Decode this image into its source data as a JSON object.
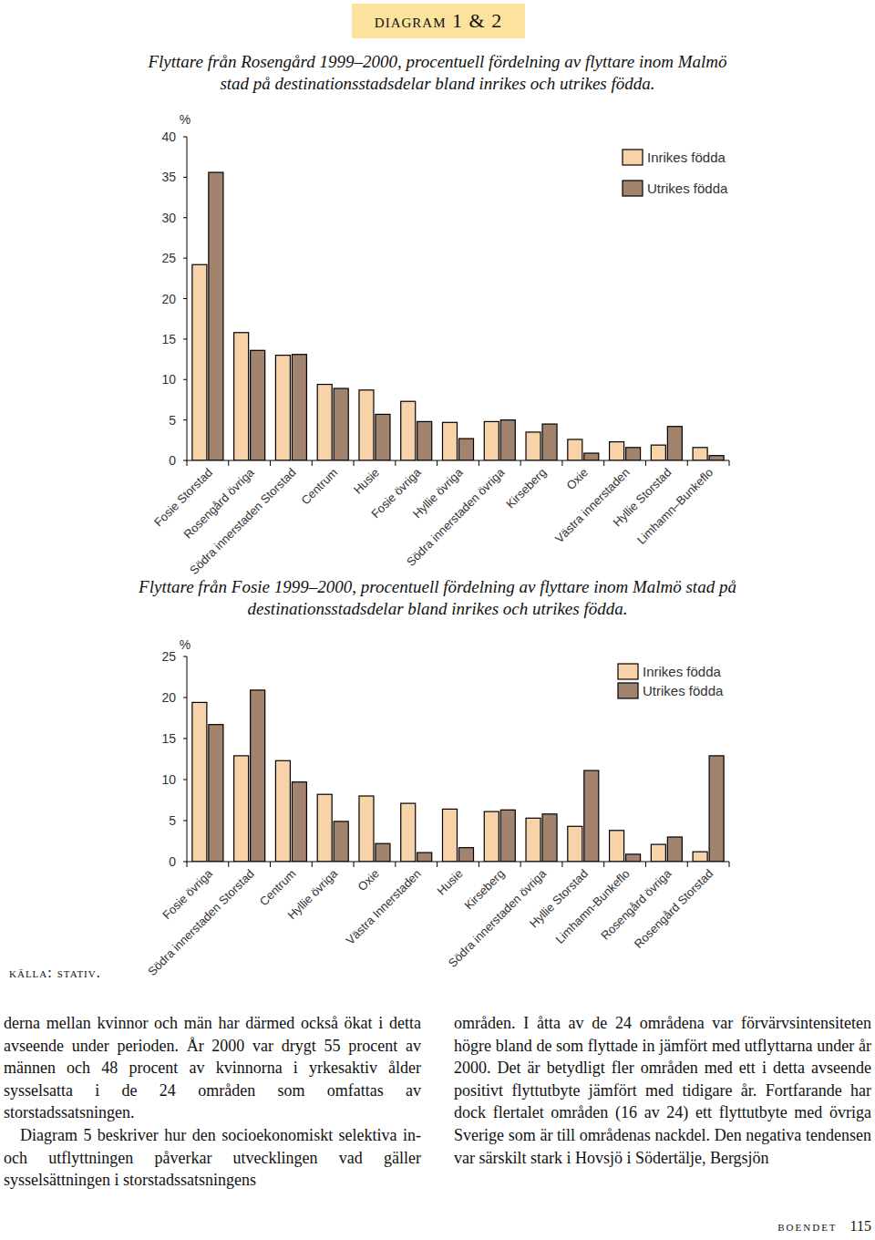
{
  "header": {
    "title": "diagram 1 & 2"
  },
  "chart_data": [
    {
      "type": "bar",
      "title": "Flyttare från Rosengård 1999–2000, procentuell fördelning av flyttare inom Malmö stad på destinationsstadsdelar bland inrikes och utrikes födda.",
      "y_label": "%",
      "categories": [
        "Fosie Storstad",
        "Rosengård övriga",
        "Södra innerstaden Storstad",
        "Centrum",
        "Husie",
        "Fosie övriga",
        "Hyllie övriga",
        "Södra innerstaden övriga",
        "Kirseberg",
        "Oxie",
        "Västra innerstaden",
        "Hyllie Storstad",
        "Limhamn–Bunkeflo"
      ],
      "series": [
        {
          "name": "Inrikes födda",
          "color": "#f8d3a9",
          "values": [
            24.2,
            15.8,
            13.0,
            9.4,
            8.7,
            7.3,
            4.7,
            4.8,
            3.5,
            2.6,
            2.3,
            1.9,
            1.6
          ]
        },
        {
          "name": "Utrikes födda",
          "color": "#a2836e",
          "values": [
            35.6,
            13.6,
            13.1,
            8.9,
            5.7,
            4.8,
            2.7,
            5.0,
            4.5,
            0.9,
            1.6,
            4.2,
            0.6
          ]
        }
      ],
      "ylim": [
        0,
        40
      ],
      "yticks": [
        0,
        5,
        10,
        15,
        20,
        25,
        30,
        35,
        40
      ],
      "legend": "upper right",
      "grid": false
    },
    {
      "type": "bar",
      "title": "Flyttare från Fosie 1999–2000, procentuell fördelning av flyttare inom Malmö stad på destinationsstadsdelar bland inrikes och utrikes födda.",
      "y_label": "%",
      "categories": [
        "Fosie övriga",
        "Södra innerstaden Storstad",
        "Centrum",
        "Hyllie övriga",
        "Oxie",
        "Västra Innerstaden",
        "Husie",
        "Kirseberg",
        "Södra innerstaden övriga",
        "Hyllie Storstad",
        "Limhamn-Bunkeflo",
        "Rosengård övriga",
        "Rosengård Storstad"
      ],
      "series": [
        {
          "name": "Inrikes födda",
          "color": "#f8d3a9",
          "values": [
            19.4,
            12.9,
            12.3,
            8.2,
            8.0,
            7.1,
            6.4,
            6.1,
            5.3,
            4.3,
            3.8,
            2.1,
            1.2
          ]
        },
        {
          "name": "Utrikes födda",
          "color": "#a2836e",
          "values": [
            16.7,
            20.9,
            9.7,
            4.9,
            2.2,
            1.1,
            1.7,
            6.3,
            5.8,
            11.1,
            0.9,
            3.0,
            12.9
          ]
        }
      ],
      "ylim": [
        0,
        25
      ],
      "yticks": [
        0,
        5,
        10,
        15,
        20,
        25
      ],
      "legend": "upper right",
      "grid": false
    }
  ],
  "source": "källa: stativ.",
  "body": {
    "columns": [
      [
        "derna mellan kvinnor och män har därmed också ökat i detta avseende under perioden. År 2000 var drygt 55 procent av männen och 48 procent av kvinnorna i yrkesaktiv ålder sysselsatta i de 24 områden som omfattas av storstadssatsningen.",
        "Diagram 5 beskriver hur den socioekonomiskt selektiva in- och utflyttningen påverkar utvecklingen vad gäller sysselsättningen i storstadssatsningens"
      ],
      [
        "områden. I åtta av de 24 områdena var förvärvsintensiteten högre bland de som flyttade in jämfört med utflyttarna under år 2000. Det är betydligt fler områden med ett i detta avseende positivt flyttutbyte jämfört med tidigare år. Fortfarande har dock flertalet områden (16 av 24) ett flyttutbyte med övriga Sverige som är till områdenas nackdel. Den negativa tendensen var särskilt stark i Hovsjö i Södertälje, Bergsjön"
      ]
    ]
  },
  "footer": {
    "section": "boendet",
    "page": 115
  }
}
